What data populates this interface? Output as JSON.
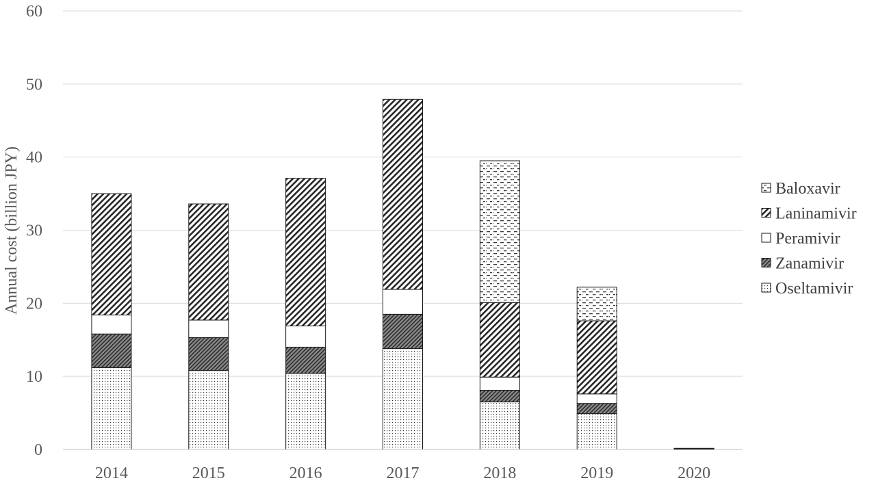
{
  "chart_data": {
    "type": "bar",
    "stacked": true,
    "title": "",
    "xlabel": "",
    "ylabel": "Annual cost (billion JPY)",
    "ylim": [
      0,
      60
    ],
    "yticks": [
      0,
      10,
      20,
      30,
      40,
      50,
      60
    ],
    "grid": true,
    "legend_position": "right",
    "categories": [
      "2014",
      "2015",
      "2016",
      "2017",
      "2018",
      "2019",
      "2020"
    ],
    "series": [
      {
        "name": "Oseltamivir",
        "pattern": "dots",
        "values": [
          11.2,
          10.8,
          10.4,
          13.8,
          6.5,
          4.9,
          0.05
        ]
      },
      {
        "name": "Zanamivir",
        "pattern": "dense-diagonal-dark",
        "values": [
          4.6,
          4.5,
          3.6,
          4.7,
          1.6,
          1.4,
          0.02
        ]
      },
      {
        "name": "Peramivir",
        "pattern": "solid-white",
        "values": [
          2.6,
          2.4,
          2.9,
          3.4,
          1.8,
          1.3,
          0.02
        ]
      },
      {
        "name": "Laninamivir",
        "pattern": "diagonal-hatch",
        "values": [
          16.6,
          15.9,
          20.2,
          26.0,
          10.2,
          10.0,
          0.05
        ]
      },
      {
        "name": "Baloxavir",
        "pattern": "dashes",
        "values": [
          0,
          0,
          0,
          0,
          19.4,
          4.6,
          0.02
        ]
      }
    ],
    "legend_order": [
      "Baloxavir",
      "Laninamivir",
      "Peramivir",
      "Zanamivir",
      "Oseltamivir"
    ]
  }
}
